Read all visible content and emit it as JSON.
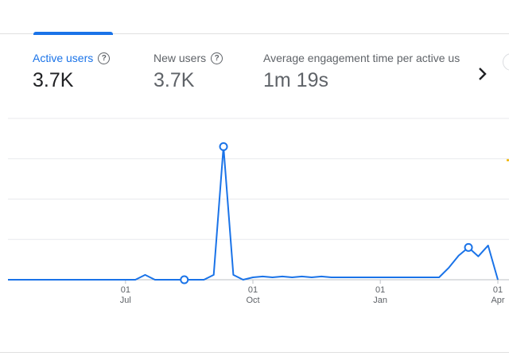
{
  "metrics": [
    {
      "label": "Active users",
      "value": "3.7K",
      "active": true
    },
    {
      "label": "New users",
      "value": "3.7K",
      "active": false
    },
    {
      "label": "Average engagement time per active us",
      "value": "1m 19s",
      "active": false
    }
  ],
  "icons": {
    "help": "help-circle-icon",
    "next": "chevron-right-icon",
    "prev": "chevron-left-icon"
  },
  "colors": {
    "accent": "#1a73e8",
    "line": "#1a73e8",
    "grid": "#e8eaed",
    "axis": "#5f6368"
  },
  "chart_data": {
    "type": "line",
    "x_ticks": [
      {
        "day": "01",
        "month": "Jul",
        "index": 12
      },
      {
        "day": "01",
        "month": "Oct",
        "index": 25
      },
      {
        "day": "01",
        "month": "Jan",
        "index": 38
      },
      {
        "day": "01",
        "month": "Apr",
        "index": 50
      }
    ],
    "ylim": [
      0,
      400
    ],
    "series": [
      {
        "values": [
          0,
          0,
          0,
          0,
          0,
          0,
          0,
          0,
          0,
          0,
          0,
          0,
          0,
          0,
          12,
          0,
          0,
          0,
          0,
          0,
          0,
          12,
          330,
          12,
          0,
          6,
          8,
          6,
          8,
          6,
          8,
          6,
          8,
          6,
          6,
          6,
          6,
          6,
          6,
          6,
          6,
          6,
          6,
          6,
          6,
          30,
          60,
          80,
          58,
          85,
          0
        ],
        "markers": [
          18,
          22,
          47
        ]
      }
    ]
  }
}
